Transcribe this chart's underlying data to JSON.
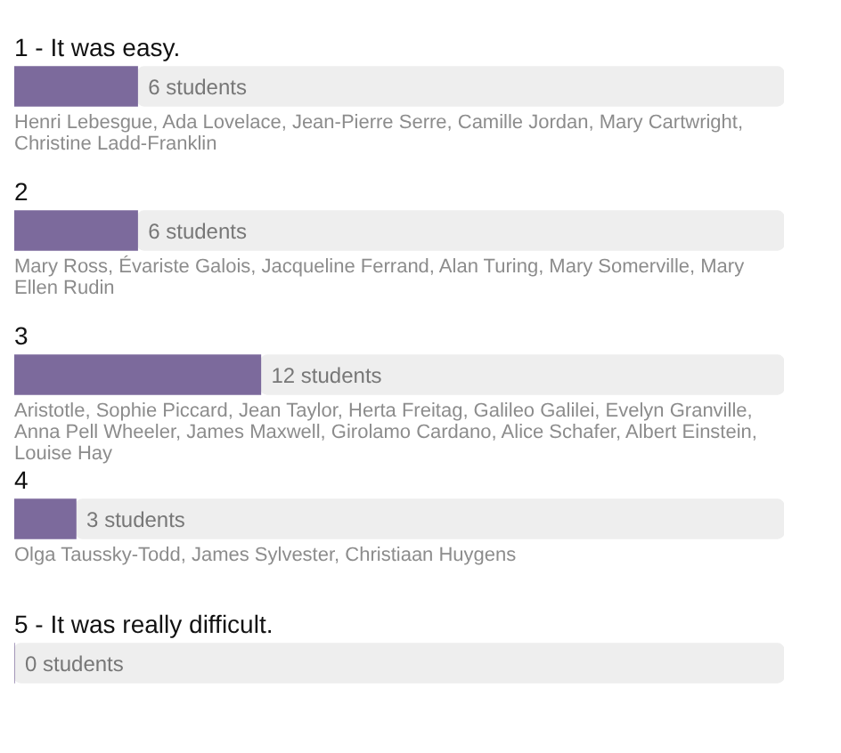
{
  "chart_data": {
    "type": "bar",
    "orientation": "horizontal",
    "tick_labels": "y",
    "stacked": true,
    "categories": [
      "1 - It was easy.",
      "2",
      "3",
      "4",
      "5 - It was really difficult."
    ],
    "series": [
      {
        "color": "#7c6a9c",
        "values": [
          6,
          6,
          12,
          3,
          0
        ],
        "value_labels": [
          "6 students",
          "6 students",
          "12 students",
          "3 students",
          "0 students"
        ]
      },
      {
        "color": "#eeeeee",
        "values": [
          31.5,
          31.5,
          25.5,
          34.5,
          37.5
        ]
      }
    ],
    "xlim": [
      0,
      37.5
    ],
    "annotations": [
      "Henri Lebesgue, Ada Lovelace, Jean-Pierre Serre, Camille Jordan, Mary Cartwright, Christine Ladd-Franklin",
      "Mary Ross, Évariste Galois, Jacqueline Ferrand, Alan Turing, Mary Somerville, Mary Ellen Rudin",
      "Aristotle, Sophie Piccard, Jean Taylor, Herta Freitag, Galileo Galilei, Evelyn Granville, Anna Pell Wheeler, James Maxwell, Girolamo Cardano, Alice Schafer, Albert Einstein, Louise Hay",
      "Olga Taussky-Todd, James Sylvester, Christiaan Huygens"
    ]
  }
}
